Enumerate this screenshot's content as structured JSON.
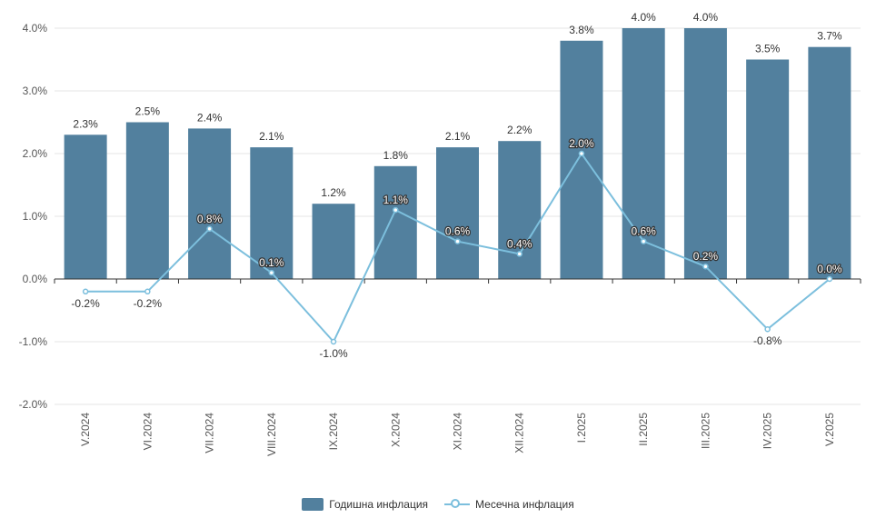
{
  "chart_data": {
    "type": "bar",
    "categories": [
      "V.2024",
      "VI.2024",
      "VII.2024",
      "VIII.2024",
      "IX.2024",
      "X.2024",
      "XI.2024",
      "XII.2024",
      "I.2025",
      "II.2025",
      "III.2025",
      "IV.2025",
      "V.2025"
    ],
    "series": [
      {
        "name": "Годишна инфлация",
        "type": "bar",
        "values": [
          2.3,
          2.5,
          2.4,
          2.1,
          1.2,
          1.8,
          2.1,
          2.2,
          3.8,
          4.0,
          4.0,
          3.5,
          3.7
        ],
        "labels": [
          "2.3%",
          "2.5%",
          "2.4%",
          "2.1%",
          "1.2%",
          "1.8%",
          "2.1%",
          "2.2%",
          "3.8%",
          "4.0%",
          "4.0%",
          "3.5%",
          "3.7%"
        ],
        "color": "#52809e"
      },
      {
        "name": "Месечна инфлация",
        "type": "line",
        "values": [
          -0.2,
          -0.2,
          0.8,
          0.1,
          -1.0,
          1.1,
          0.6,
          0.4,
          2.0,
          0.6,
          0.2,
          -0.8,
          0.0
        ],
        "labels": [
          "-0.2%",
          "-0.2%",
          "0.8%",
          "0.1%",
          "-1.0%",
          "1.1%",
          "0.6%",
          "0.4%",
          "2.0%",
          "0.6%",
          "0.2%",
          "-0.8%",
          "0.0%"
        ],
        "color": "#7cbfdd"
      }
    ],
    "yticks": [
      "4.0%",
      "3.0%",
      "2.0%",
      "1.0%",
      "0.0%",
      "-1.0%",
      "-2.0%"
    ],
    "ylim": [
      -2.0,
      4.0
    ],
    "grid": true,
    "legend_position": "bottom-center"
  }
}
